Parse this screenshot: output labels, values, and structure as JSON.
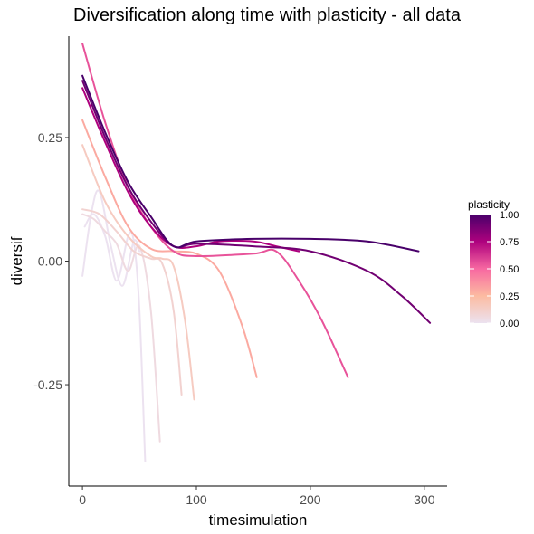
{
  "chart_data": {
    "type": "line",
    "title": "Diversification along time with plasticity - all data",
    "xlabel": "timesimulation",
    "ylabel": "diversif",
    "xlim": [
      -12,
      320
    ],
    "ylim": [
      -0.455,
      0.455
    ],
    "x_ticks": [
      0,
      100,
      200,
      300
    ],
    "y_ticks": [
      -0.25,
      0.0,
      0.25
    ],
    "y_tick_labels": [
      "-0.25",
      "0.00",
      "0.25"
    ],
    "grid": false,
    "legend": {
      "title": "plasticity",
      "placement": "right",
      "scale": "continuous",
      "ticks": [
        0.0,
        0.25,
        0.5,
        0.75,
        1.0
      ],
      "tick_labels": [
        "0.00",
        "0.25",
        "0.50",
        "0.75",
        "1.00"
      ],
      "colors": [
        "#ece2f0",
        "#fcbba1",
        "#f768a1",
        "#ae017e",
        "#49006a"
      ]
    },
    "series": [
      {
        "plasticity": 1.0,
        "x": [
          0,
          20,
          40,
          60,
          80,
          100,
          150,
          200,
          250,
          295
        ],
        "y": [
          0.375,
          0.26,
          0.16,
          0.09,
          0.03,
          0.04,
          0.045,
          0.045,
          0.04,
          0.02
        ]
      },
      {
        "plasticity": 0.9,
        "x": [
          0,
          20,
          40,
          60,
          80,
          100,
          150,
          200,
          250,
          280,
          305
        ],
        "y": [
          0.365,
          0.25,
          0.15,
          0.08,
          0.03,
          0.035,
          0.03,
          0.02,
          -0.02,
          -0.07,
          -0.125
        ]
      },
      {
        "plasticity": 0.55,
        "x": [
          0,
          20,
          40,
          60,
          80,
          100,
          150,
          170,
          190,
          210,
          233
        ],
        "y": [
          0.44,
          0.28,
          0.15,
          0.07,
          0.02,
          0.01,
          0.015,
          0.02,
          -0.04,
          -0.12,
          -0.235
        ]
      },
      {
        "plasticity": 0.75,
        "x": [
          0,
          20,
          40,
          60,
          80,
          100,
          120,
          150,
          170,
          190
        ],
        "y": [
          0.35,
          0.24,
          0.14,
          0.07,
          0.03,
          0.03,
          0.04,
          0.04,
          0.03,
          0.02
        ]
      },
      {
        "plasticity": 0.3,
        "x": [
          0,
          20,
          40,
          60,
          80,
          100,
          120,
          140,
          153
        ],
        "y": [
          0.285,
          0.17,
          0.07,
          0.025,
          0.02,
          0.015,
          -0.02,
          -0.13,
          -0.235
        ]
      },
      {
        "plasticity": 0.15,
        "x": [
          0,
          20,
          40,
          60,
          70,
          80,
          90,
          98
        ],
        "y": [
          0.235,
          0.12,
          0.05,
          0.01,
          0.005,
          -0.01,
          -0.12,
          -0.28
        ]
      },
      {
        "plasticity": 0.1,
        "x": [
          0,
          15,
          30,
          45,
          60,
          70,
          80,
          87
        ],
        "y": [
          0.105,
          0.095,
          0.06,
          0.02,
          0.005,
          -0.005,
          -0.1,
          -0.27
        ]
      },
      {
        "plasticity": 0.05,
        "x": [
          0,
          10,
          20,
          30,
          40,
          50,
          60,
          68
        ],
        "y": [
          0.095,
          0.085,
          0.06,
          0.035,
          -0.02,
          0.03,
          -0.1,
          -0.365
        ]
      },
      {
        "plasticity": 0.0,
        "x": [
          2,
          10,
          20,
          30,
          40,
          45,
          50,
          55
        ],
        "y": [
          0.07,
          0.095,
          0.05,
          -0.04,
          0.05,
          0.04,
          -0.1,
          -0.405
        ]
      },
      {
        "plasticity": 0.0,
        "x": [
          0,
          8,
          15,
          25,
          35,
          45,
          50
        ],
        "y": [
          -0.03,
          0.1,
          0.14,
          0.03,
          -0.05,
          0.04,
          0.02
        ]
      }
    ]
  }
}
